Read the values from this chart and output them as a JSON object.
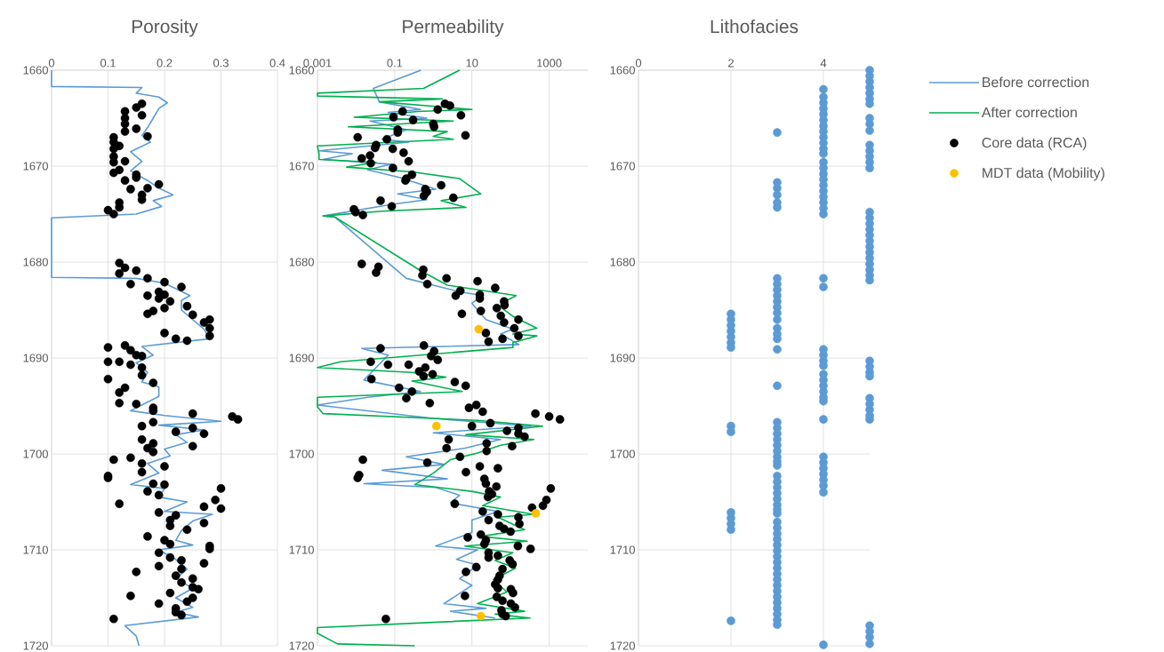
{
  "chart_data": [
    {
      "type": "line",
      "title": "Porosity",
      "xlim": [
        0,
        0.4
      ],
      "xticks": [
        0,
        0.1,
        0.2,
        0.3,
        0.4
      ],
      "ylim": [
        1720,
        1660
      ],
      "yticks": [
        1660,
        1670,
        1680,
        1690,
        1700,
        1710,
        1720
      ],
      "grid": true,
      "series": [
        {
          "color": "#5b9bd5",
          "x": [
            0,
            0,
            0.16,
            0.15,
            0.19,
            0.205,
            0.19,
            0.18,
            0.17,
            0.16,
            0.175,
            0.14,
            0.16,
            0.14,
            0.17,
            0.19,
            0.215,
            0.18,
            0.195,
            0.15,
            0,
            0,
            0.15,
            0.2,
            0.245,
            0.23,
            0.23,
            0.27,
            0.28,
            0.16,
            0.18,
            0.15,
            0.17,
            0.16,
            0.19,
            0.19,
            0.14,
            0.2,
            0.3,
            0.19,
            0.27,
            0.22,
            0.24,
            0.2,
            0.21,
            0.17,
            0.19,
            0.14,
            0.2,
            0.19,
            0.24,
            0.2,
            0.285,
            0.25,
            0.23,
            0.22,
            0.25,
            0.19,
            0.22,
            0.24,
            0.22,
            0.25,
            0.22,
            0.25,
            0.22,
            0.26,
            0.13,
            0.15,
            0.155
          ],
          "values": [
            1660,
            1661.7,
            1661.8,
            1662.4,
            1662.8,
            1663.4,
            1664,
            1665,
            1666,
            1666.8,
            1667.5,
            1668.5,
            1669.5,
            1670.5,
            1671.5,
            1672.3,
            1673,
            1673.6,
            1674.2,
            1675,
            1675.4,
            1681.6,
            1681.7,
            1682.2,
            1683.5,
            1684,
            1685,
            1687,
            1688,
            1688.8,
            1689.7,
            1690.5,
            1691.5,
            1692.5,
            1693,
            1694,
            1695.5,
            1696,
            1696.6,
            1697,
            1697.5,
            1698,
            1698.8,
            1699.5,
            1700.2,
            1701,
            1702,
            1703.2,
            1703.6,
            1704.5,
            1705,
            1706,
            1706.3,
            1707,
            1708,
            1709,
            1709.5,
            1710,
            1711,
            1712,
            1713,
            1714,
            1715,
            1716,
            1716.5,
            1717,
            1717.9,
            1719,
            1720
          ]
        },
        {
          "type": "scatter",
          "color": "#000000",
          "marker": "circle",
          "x": [
            0.16,
            0.15,
            0.13,
            0.16,
            0.13,
            0.13,
            0.15,
            0.13,
            0.17,
            0.11,
            0.11,
            0.11,
            0.12,
            0.11,
            0.11,
            0.13,
            0.12,
            0.11,
            0.15,
            0.15,
            0.19,
            0.13,
            0.14,
            0.17,
            0.16,
            0.16,
            0.12,
            0.12,
            0.1,
            0.11,
            0.12,
            0.13,
            0.12,
            0.15,
            0.17,
            0.14,
            0.2,
            0.23,
            0.19,
            0.2,
            0.17,
            0.19,
            0.21,
            0.24,
            0.2,
            0.18,
            0.17,
            0.25,
            0.28,
            0.27,
            0.28,
            0.28,
            0.2,
            0.22,
            0.24,
            0.1,
            0.13,
            0.14,
            0.15,
            0.16,
            0.1,
            0.12,
            0.14,
            0.16,
            0.16,
            0.1,
            0.18,
            0.13,
            0.12,
            0.12,
            0.15,
            0.18,
            0.18,
            0.25,
            0.32,
            0.33,
            0.16,
            0.18,
            0.22,
            0.25,
            0.27,
            0.16,
            0.18,
            0.17,
            0.18,
            0.25,
            0.11,
            0.14,
            0.16,
            0.2,
            0.16,
            0.1,
            0.1,
            0.18,
            0.2,
            0.17,
            0.19,
            0.3,
            0.29,
            0.12,
            0.27,
            0.3,
            0.19,
            0.22,
            0.21,
            0.21,
            0.27,
            0.24,
            0.17,
            0.2,
            0.28,
            0.28,
            0.21,
            0.19,
            0.21,
            0.23,
            0.27,
            0.19,
            0.23,
            0.15,
            0.22,
            0.23,
            0.25,
            0.25,
            0.26,
            0.21,
            0.14,
            0.25,
            0.24,
            0.19,
            0.22,
            0.22,
            0.23,
            0.11
          ],
          "values": [
            1663.5,
            1663.9,
            1664.3,
            1664.7,
            1665,
            1665.6,
            1666.1,
            1666.4,
            1666.9,
            1667,
            1667.5,
            1668.2,
            1667.9,
            1669,
            1669.6,
            1669.5,
            1670.4,
            1670.7,
            1670.9,
            1671.2,
            1671.9,
            1671.5,
            1672.4,
            1672.3,
            1673,
            1673.5,
            1673.8,
            1674.3,
            1674.6,
            1675,
            1680.1,
            1680.6,
            1681.2,
            1680.9,
            1681.7,
            1682.3,
            1682.1,
            1682.6,
            1683.1,
            1683.4,
            1683.5,
            1683.8,
            1684.1,
            1684.6,
            1684.8,
            1685.1,
            1685.4,
            1685.5,
            1686,
            1686.3,
            1686.9,
            1687.7,
            1687.4,
            1688,
            1688.2,
            1688.9,
            1688.7,
            1689.2,
            1689.7,
            1689.8,
            1690.4,
            1690.4,
            1690.7,
            1691,
            1691.8,
            1692.2,
            1692.6,
            1693.1,
            1693.6,
            1694.7,
            1694.8,
            1695.2,
            1695.5,
            1695.8,
            1696.1,
            1696.4,
            1697.1,
            1696.7,
            1697.7,
            1697.3,
            1697.9,
            1698.5,
            1698.9,
            1699.4,
            1699.8,
            1699.2,
            1700.6,
            1700.4,
            1701,
            1701.3,
            1701.9,
            1702.3,
            1702.5,
            1703.1,
            1703.2,
            1703.9,
            1704.3,
            1703.6,
            1704.8,
            1705.2,
            1705.5,
            1705.7,
            1706.1,
            1706.4,
            1706.9,
            1707.5,
            1707.2,
            1707.9,
            1708.6,
            1709,
            1709.6,
            1709.9,
            1709.4,
            1710.3,
            1710.8,
            1711.1,
            1711.4,
            1711.7,
            1712,
            1712.3,
            1712.7,
            1713.4,
            1713,
            1713.9,
            1714.1,
            1714.5,
            1714.8,
            1715,
            1715.4,
            1715.6,
            1716.1,
            1716.5,
            1716.8,
            1717.2
          ]
        }
      ]
    },
    {
      "type": "line",
      "title": "Permeability",
      "log": "x",
      "xlim": [
        0.001,
        10000
      ],
      "xticks": [
        0.001,
        0.1,
        10,
        1000
      ],
      "ylim": [
        1720,
        1660
      ],
      "yticks": [
        1660,
        1670,
        1680,
        1690,
        1700,
        1710,
        1720
      ],
      "grid": true,
      "legend": "right",
      "series": [
        {
          "name": "Before correction",
          "color": "#5b9bd5",
          "x": [
            0.48,
            0.028,
            0.04,
            0.47,
            0.067,
            0.68,
            0.023,
            0.2,
            0.047,
            0.23,
            0.0011,
            0.008,
            0.0014,
            0.081,
            0.02,
            0.14,
            1.15,
            0.12,
            0.68,
            0.08,
            0.0014,
            0.0028,
            0.2,
            4.8,
            19,
            10,
            23,
            115,
            55,
            165,
            0.014,
            0.068,
            0.016,
            0.47,
            0.02,
            0.001,
            1,
            340,
            1,
            55,
            6.6,
            0.2,
            1.9,
            0.047,
            2.3,
            0.016,
            1.15,
            4.8,
            2.8,
            47,
            10,
            10,
            1.15,
            14,
            4,
            14,
            4.8,
            10,
            1.9,
            23,
            2.8,
            40
          ],
          "values": [
            1660,
            1661.9,
            1663.3,
            1664.1,
            1664.4,
            1665,
            1665.3,
            1666.2,
            1667.2,
            1667.5,
            1668.4,
            1668.7,
            1669.3,
            1669.8,
            1670.4,
            1671.2,
            1672.4,
            1672.9,
            1673.5,
            1674,
            1675.2,
            1675.3,
            1681.7,
            1683.1,
            1683.5,
            1684.3,
            1686,
            1687,
            1687.5,
            1688.6,
            1689,
            1689.7,
            1692.3,
            1693.5,
            1694.1,
            1694.9,
            1696.3,
            1697.1,
            1697.8,
            1698.5,
            1699.4,
            1700.3,
            1701.1,
            1701.7,
            1702.6,
            1703.1,
            1703.5,
            1704.3,
            1705.1,
            1706,
            1706.9,
            1708.2,
            1709.6,
            1710,
            1711,
            1711.6,
            1713,
            1713.7,
            1715.6,
            1716.1,
            1716.4,
            1717.1
          ]
        },
        {
          "name": "After correction",
          "color": "#00b050",
          "x": [
            4.8,
            0.56,
            0.001,
            0.001,
            1.7,
            0.04,
            10,
            0.4,
            0.009,
            3.3,
            0.0063,
            2.3,
            1,
            3.3,
            0.001,
            0.0011,
            0.0011,
            0.033,
            0.0057,
            0.28,
            4.8,
            17,
            1.6,
            7,
            0.047,
            0.0014,
            0.0028,
            0.47,
            2.3,
            140,
            72,
            60,
            120,
            480,
            115,
            480,
            115,
            115,
            0.004,
            0.001,
            0.28,
            2.1,
            0.28,
            5.6,
            0.001,
            0.001,
            0.0014,
            14,
            680,
            7,
            400,
            55,
            14,
            2.8,
            1,
            0.33,
            10,
            55,
            19,
            400,
            47,
            230,
            17,
            270,
            6.6,
            115,
            40,
            135,
            36,
            80,
            14,
            230,
            40,
            320,
            0.001,
            0.001,
            0.0033,
            0.33
          ],
          "values": [
            1660,
            1661.9,
            1662.4,
            1662.7,
            1663,
            1663.3,
            1664.1,
            1664.3,
            1664.9,
            1665.3,
            1665.9,
            1666.4,
            1666.9,
            1667.2,
            1667.9,
            1668.7,
            1669.3,
            1669.6,
            1670.1,
            1670.6,
            1671.3,
            1672.9,
            1673.6,
            1674.3,
            1674.7,
            1675.2,
            1675.3,
            1680.9,
            1682.4,
            1683.5,
            1684.1,
            1684.8,
            1685.7,
            1686.9,
            1687.5,
            1687.7,
            1688.4,
            1688.9,
            1690.4,
            1691,
            1691.5,
            1692,
            1692.4,
            1693.5,
            1694.1,
            1695.1,
            1695.8,
            1696.5,
            1697.1,
            1698,
            1698.5,
            1699.1,
            1699.9,
            1700.6,
            1702,
            1703.2,
            1703.9,
            1704.5,
            1705.4,
            1706.3,
            1706.6,
            1707.9,
            1708.6,
            1709.1,
            1709.6,
            1710.3,
            1711.1,
            1711.9,
            1713.1,
            1714.4,
            1715.6,
            1716.4,
            1716.7,
            1717.1,
            1718.1,
            1718.7,
            1719.8,
            1720
          ]
        },
        {
          "type": "scatter",
          "name": "Core data (RCA)",
          "color": "#000000",
          "marker": "circle",
          "x": [
            2,
            2.7,
            1.3,
            0.16,
            5.2,
            0.093,
            0.3,
            1,
            1.05,
            0.12,
            0.12,
            6.8,
            0.011,
            0.063,
            0.033,
            0.031,
            0.089,
            0.17,
            0.014,
            0.023,
            0.024,
            0.23,
            0.09,
            0.28,
            0.2,
            0.19,
            1.6,
            0.62,
            0.68,
            0.57,
            3.3,
            0.043,
            0.084,
            0.0088,
            0.0097,
            0.015,
            0.014,
            0.038,
            0.033,
            0.55,
            0.52,
            0.7,
            2.2,
            14,
            40,
            5,
            3.8,
            16,
            16,
            68,
            70,
            17,
            44,
            5.5,
            56,
            160,
            68,
            125,
            160,
            23,
            27,
            62,
            0.043,
            0.57,
            1.05,
            0.88,
            1.3,
            0.024,
            0.067,
            0.23,
            0.43,
            0.62,
            0.56,
            0.96,
            0.025,
            3.6,
            6.9,
            0.13,
            0.28,
            0.2,
            0.81,
            8.4,
            13,
            19,
            440,
            1000,
            1900,
            30,
            10,
            160,
            81,
            160,
            230,
            2.5,
            24,
            110,
            2.2,
            24,
            0.015,
            4.9,
            0.7,
            16,
            47,
            7,
            0.012,
            0.011,
            21,
            23,
            43,
            1100,
            28,
            33,
            26,
            850,
            690,
            360,
            3.6,
            19,
            47,
            160,
            27,
            170,
            52,
            68,
            100,
            7.8,
            17,
            23,
            21,
            155,
            330,
            27,
            47,
            27,
            95,
            113,
            13,
            7,
            62,
            52,
            47,
            40,
            47,
            102,
            116,
            6.6,
            44,
            62,
            102,
            130,
            58,
            62,
            75,
            0.059
          ],
          "values": [
            1663.5,
            1663.7,
            1664.1,
            1664.3,
            1664.7,
            1664.9,
            1665.2,
            1665.6,
            1665.9,
            1666.2,
            1666.5,
            1666.8,
            1667,
            1667.2,
            1667.8,
            1668.1,
            1668.2,
            1668.6,
            1669.2,
            1668.9,
            1669.7,
            1669.5,
            1670.2,
            1670.9,
            1671.3,
            1671.5,
            1672,
            1672.4,
            1672.7,
            1673.1,
            1673.3,
            1673.6,
            1674.2,
            1674.5,
            1674.8,
            1675.1,
            1680.2,
            1680.5,
            1681.1,
            1680.8,
            1681.4,
            1682.3,
            1681.7,
            1682,
            1682.7,
            1683,
            1683.5,
            1683.4,
            1683.8,
            1684.1,
            1684.5,
            1685.1,
            1684.8,
            1685.4,
            1685.6,
            1686,
            1686.3,
            1686.9,
            1687.7,
            1687.4,
            1688.3,
            1688,
            1689,
            1688.7,
            1689.3,
            1689.8,
            1690.2,
            1690.4,
            1690.7,
            1690.7,
            1691.4,
            1691,
            1691.9,
            1691.7,
            1692.2,
            1692.5,
            1692.9,
            1693.1,
            1693.5,
            1694.2,
            1694.7,
            1695.2,
            1694.9,
            1695.6,
            1695.8,
            1696.1,
            1696.4,
            1696.8,
            1697.1,
            1697.3,
            1697.6,
            1697.9,
            1698.2,
            1698.5,
            1698.9,
            1699.2,
            1699.4,
            1699.7,
            1700.6,
            1700.3,
            1700.9,
            1701.3,
            1701.5,
            1701.9,
            1702.2,
            1702.5,
            1702.6,
            1703.1,
            1703.4,
            1703.6,
            1703.9,
            1704.2,
            1704.5,
            1704.8,
            1705.4,
            1705.6,
            1705.2,
            1706,
            1706.3,
            1706.6,
            1706.9,
            1707.3,
            1707.5,
            1707.8,
            1708.1,
            1708.7,
            1708.4,
            1709,
            1709.4,
            1709.6,
            1709.9,
            1710.3,
            1710.6,
            1710.8,
            1711.1,
            1711.5,
            1711.8,
            1712.3,
            1712,
            1712.7,
            1713.1,
            1713.6,
            1714,
            1714.1,
            1714.5,
            1714.8,
            1714.9,
            1715.3,
            1715.6,
            1716,
            1716.3,
            1716.7,
            1716.9,
            1717.2
          ]
        },
        {
          "type": "scatter",
          "name": "MDT data (Mobility)",
          "color": "#ffc000",
          "marker": "circle",
          "x": [
            15,
            1.2,
            450,
            17
          ],
          "values": [
            1687,
            1697.1,
            1706.2,
            1716.9
          ]
        }
      ]
    },
    {
      "type": "scatter",
      "title": "Lithofacies",
      "xlim": [
        0,
        5
      ],
      "xticks": [
        0,
        2,
        4
      ],
      "ylim": [
        1720,
        1660
      ],
      "yticks": [
        1660,
        1670,
        1680,
        1690,
        1700,
        1710,
        1720
      ],
      "grid": true,
      "series": [
        {
          "color": "#5b9bd5",
          "marker": "circle",
          "x": [
            5,
            5,
            5,
            5,
            5,
            5,
            5,
            5,
            5,
            5,
            5,
            5,
            5,
            5,
            5,
            5,
            5,
            5,
            5,
            5,
            5,
            5,
            5,
            5,
            5,
            5,
            5,
            5,
            5,
            5,
            5,
            5,
            5,
            5,
            5,
            5,
            5,
            5,
            5,
            5,
            5,
            4,
            4,
            4,
            4,
            4,
            4,
            4,
            4,
            4,
            4,
            4,
            4,
            4,
            4,
            4,
            4,
            4,
            4,
            4,
            4,
            4,
            4,
            4,
            4,
            4,
            4,
            4,
            4,
            4,
            4,
            4,
            4,
            4,
            4,
            4,
            4,
            4,
            4,
            4,
            4,
            4,
            4,
            4,
            3,
            3,
            3,
            3,
            3,
            3,
            3,
            3,
            3,
            3,
            3,
            3,
            3,
            3,
            3,
            3,
            3,
            3,
            3,
            3,
            3,
            3,
            3,
            3,
            3,
            3,
            3,
            3,
            3,
            3,
            3,
            3,
            3,
            3,
            3,
            3,
            3,
            3,
            3,
            3,
            3,
            3,
            3,
            3,
            3,
            3,
            3,
            3,
            3,
            3,
            3,
            3,
            3,
            3,
            3,
            2,
            2,
            2,
            2,
            2,
            2,
            2,
            2,
            2,
            2,
            2,
            2,
            2,
            2
          ],
          "values": [
            1660,
            1660.6,
            1661.2,
            1661.8,
            1662.4,
            1663,
            1663.5,
            1665,
            1665.6,
            1666.3,
            1667.8,
            1668.4,
            1669,
            1669.6,
            1670.2,
            1674.8,
            1675.4,
            1676,
            1676.6,
            1677.2,
            1677.8,
            1678.4,
            1679,
            1679.6,
            1680.2,
            1680.8,
            1681.4,
            1681.9,
            1690.3,
            1690.9,
            1691.5,
            1691.9,
            1694.2,
            1694.8,
            1695.4,
            1696,
            1696.4,
            1717.9,
            1718.5,
            1719.1,
            1719.8,
            1662,
            1662.8,
            1663.4,
            1664,
            1664.6,
            1665.2,
            1665.8,
            1666.4,
            1667,
            1667.6,
            1668.2,
            1668.7,
            1669.6,
            1670.2,
            1670.8,
            1671.4,
            1672,
            1672.6,
            1673.2,
            1673.8,
            1674.4,
            1675,
            1681.7,
            1682.6,
            1689.1,
            1689.7,
            1690.3,
            1690.8,
            1691.7,
            1692.3,
            1692.9,
            1693.5,
            1694.1,
            1694.5,
            1696.4,
            1700.3,
            1700.9,
            1701.5,
            1702.1,
            1702.7,
            1703.3,
            1704,
            1719.9,
            1666.5,
            1671.7,
            1672.3,
            1673,
            1673.8,
            1674.3,
            1681.7,
            1682.3,
            1682.9,
            1683.5,
            1684.1,
            1684.7,
            1685.3,
            1686,
            1686.9,
            1687.5,
            1688,
            1689.1,
            1692.9,
            1696.7,
            1697.3,
            1697.9,
            1698.5,
            1699.1,
            1699.7,
            1700.3,
            1700.8,
            1701.2,
            1702.3,
            1702.9,
            1703.5,
            1704.1,
            1704.7,
            1705.3,
            1705.8,
            1706.2,
            1707.1,
            1707.7,
            1708.3,
            1708.9,
            1709.5,
            1710.1,
            1710.7,
            1711.3,
            1711.9,
            1712.5,
            1713.1,
            1713.7,
            1714.3,
            1714.9,
            1715.5,
            1716.1,
            1716.7,
            1717.3,
            1717.8,
            1685.4,
            1686,
            1686.6,
            1687.2,
            1687.8,
            1688.4,
            1688.9,
            1697.1,
            1697.7,
            1706.1,
            1706.7,
            1707.3,
            1707.9,
            1717.4
          ]
        }
      ]
    }
  ]
}
